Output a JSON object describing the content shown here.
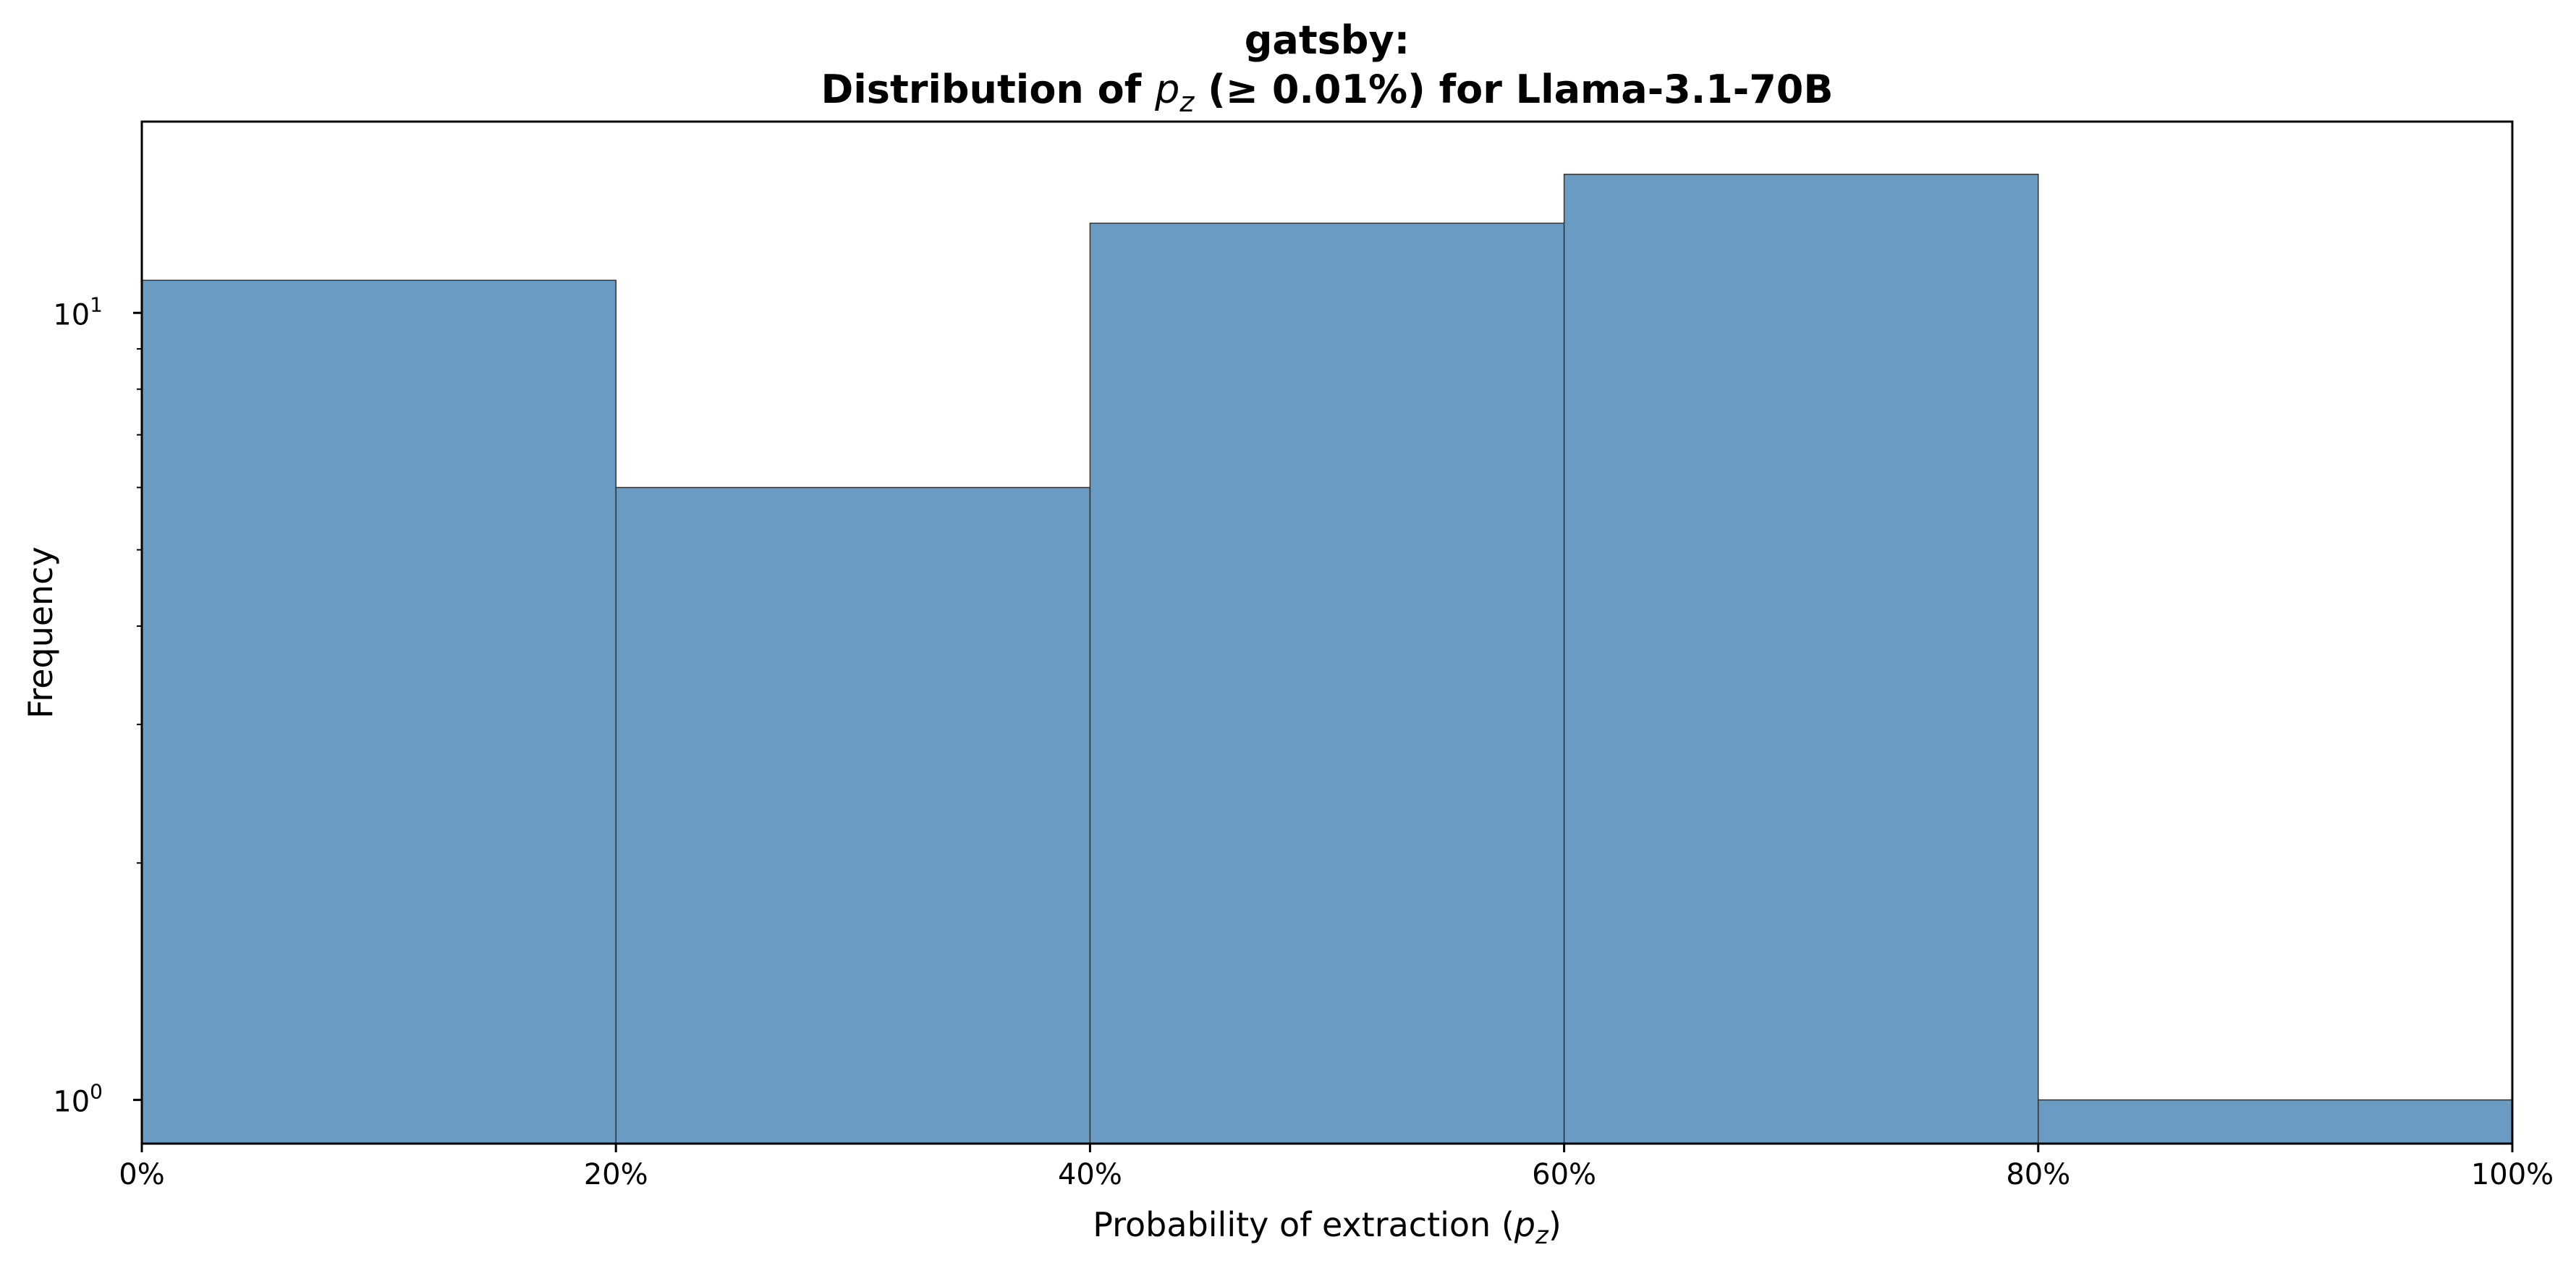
{
  "chart_data": {
    "type": "bar",
    "title_line1": "gatsby:",
    "title_line2": {
      "before": "Distribution of ",
      "symbol": "p",
      "subscript": "z",
      "after": " (≥ 0.01%) for Llama-3.1-70B"
    },
    "xlabel": {
      "before": "Probability of extraction (",
      "symbol": "p",
      "subscript": "z",
      "after": ")"
    },
    "ylabel": "Frequency",
    "y_scale": "log",
    "ylim": [
      0.88,
      17.5
    ],
    "xlim": [
      0,
      100
    ],
    "bins": [
      {
        "start": 0,
        "end": 20,
        "value": 11
      },
      {
        "start": 20,
        "end": 40,
        "value": 6
      },
      {
        "start": 40,
        "end": 60,
        "value": 13
      },
      {
        "start": 60,
        "end": 80,
        "value": 15
      },
      {
        "start": 80,
        "end": 100,
        "value": 1
      }
    ],
    "x_ticks": [
      "0%",
      "20%",
      "40%",
      "60%",
      "80%",
      "100%"
    ],
    "x_tick_values": [
      0,
      20,
      40,
      60,
      80,
      100
    ],
    "y_major_ticks": [
      {
        "value": 1,
        "base": "10",
        "exponent": "0"
      },
      {
        "value": 10,
        "base": "10",
        "exponent": "1"
      }
    ],
    "y_minor_ticks": [
      2,
      3,
      4,
      5,
      6,
      7,
      8,
      9
    ],
    "grid": false,
    "bar_color": "#6a9bc3",
    "edge_color": "#333333"
  }
}
